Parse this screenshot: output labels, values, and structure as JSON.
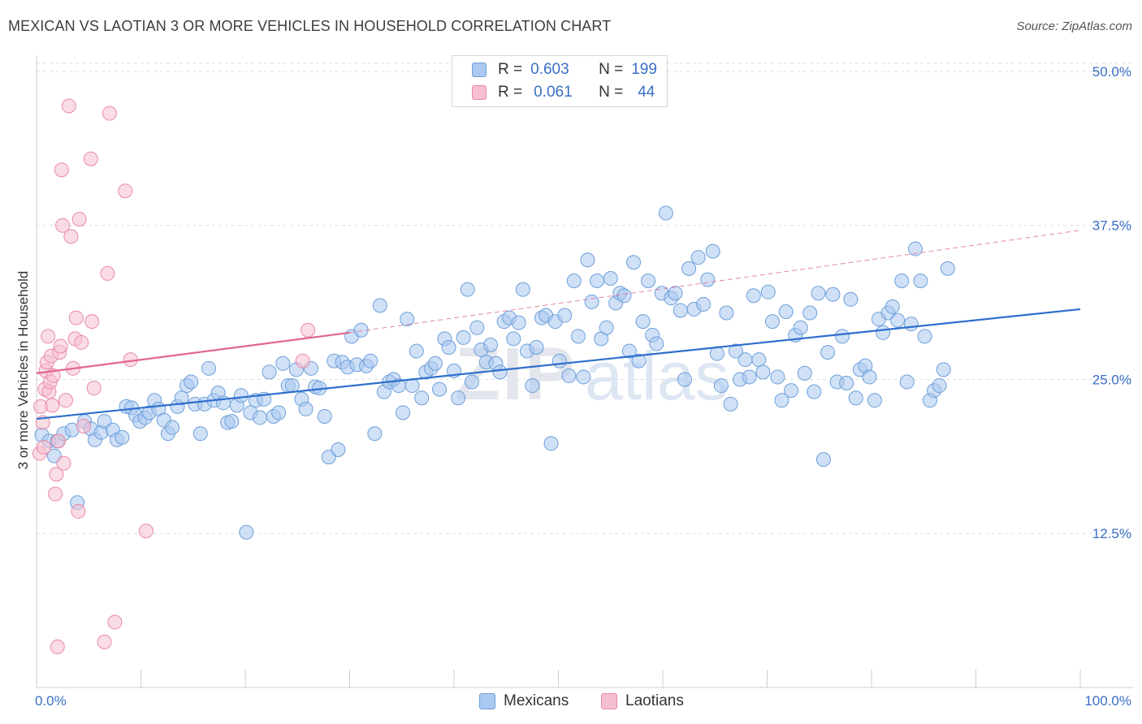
{
  "header": {
    "title": "MEXICAN VS LAOTIAN 3 OR MORE VEHICLES IN HOUSEHOLD CORRELATION CHART",
    "source": "Source: ZipAtlas.com"
  },
  "legend": {
    "rows": [
      {
        "r_label": "R =",
        "r_value": "0.603",
        "n_label": "N =",
        "n_value": "199"
      },
      {
        "r_label": "R =",
        "r_value": "0.061",
        "n_label": "N =",
        "n_value": "44"
      }
    ],
    "bottom": [
      "Mexicans",
      "Laotians"
    ]
  },
  "watermark": {
    "zip": "ZIP",
    "atlas": "atlas"
  },
  "colors": {
    "mexicans_fill": "#aac8f0",
    "mexicans_stroke": "#6e9fd8",
    "mexicans_line": "#2e6fcc",
    "laotians_fill": "#f6bfd0",
    "laotians_stroke": "#e88aa8",
    "laotians_line": "#e06890",
    "tick_label": "#3a6fc4",
    "grid": "#dddddd"
  },
  "chart_data": {
    "type": "scatter",
    "title": "MEXICAN VS LAOTIAN 3 OR MORE VEHICLES IN HOUSEHOLD CORRELATION CHART",
    "xlabel": "",
    "ylabel": "3 or more Vehicles in Household",
    "xlim": [
      0,
      100
    ],
    "ylim": [
      0,
      52.5
    ],
    "x_tick_labels": [
      "0.0%",
      "100.0%"
    ],
    "y_ticks": [
      12.5,
      25.0,
      37.5,
      50.0
    ],
    "y_tick_labels": [
      "12.5%",
      "25.0%",
      "37.5%",
      "50.0%"
    ],
    "grid": "horizontal dashed",
    "legend_position": "top-center",
    "series": [
      {
        "name": "Mexicans",
        "R": 0.603,
        "N": 199,
        "trend": {
          "x": [
            0,
            100
          ],
          "y": [
            21.8,
            30.7
          ]
        },
        "points": [
          [
            0.5,
            20.5
          ],
          [
            1.2,
            20.0
          ],
          [
            1.7,
            18.8
          ],
          [
            2.0,
            20.0
          ],
          [
            2.6,
            20.6
          ],
          [
            3.4,
            20.9
          ],
          [
            3.9,
            15.0
          ],
          [
            4.6,
            21.6
          ],
          [
            5.2,
            21.0
          ],
          [
            5.6,
            20.1
          ],
          [
            6.2,
            20.7
          ],
          [
            6.5,
            21.6
          ],
          [
            7.3,
            20.9
          ],
          [
            7.7,
            20.1
          ],
          [
            8.2,
            20.3
          ],
          [
            8.6,
            22.8
          ],
          [
            9.1,
            22.7
          ],
          [
            9.5,
            22.1
          ],
          [
            9.9,
            21.6
          ],
          [
            10.4,
            21.9
          ],
          [
            10.8,
            22.3
          ],
          [
            11.3,
            23.3
          ],
          [
            11.7,
            22.6
          ],
          [
            12.2,
            21.7
          ],
          [
            12.6,
            20.6
          ],
          [
            13.0,
            21.1
          ],
          [
            13.5,
            22.8
          ],
          [
            13.9,
            23.5
          ],
          [
            14.4,
            24.5
          ],
          [
            14.8,
            24.8
          ],
          [
            15.2,
            23.0
          ],
          [
            15.7,
            20.6
          ],
          [
            16.1,
            23.0
          ],
          [
            16.5,
            25.9
          ],
          [
            17.0,
            23.3
          ],
          [
            17.4,
            23.9
          ],
          [
            17.9,
            23.1
          ],
          [
            18.3,
            21.5
          ],
          [
            18.7,
            21.6
          ],
          [
            19.2,
            22.9
          ],
          [
            19.6,
            23.7
          ],
          [
            20.1,
            12.6
          ],
          [
            20.5,
            22.3
          ],
          [
            21.0,
            23.3
          ],
          [
            21.4,
            21.9
          ],
          [
            21.8,
            23.4
          ],
          [
            22.3,
            25.6
          ],
          [
            22.7,
            22.0
          ],
          [
            23.2,
            22.3
          ],
          [
            23.6,
            26.3
          ],
          [
            24.1,
            24.5
          ],
          [
            24.5,
            24.5
          ],
          [
            24.9,
            25.8
          ],
          [
            25.4,
            23.4
          ],
          [
            25.8,
            22.6
          ],
          [
            26.3,
            25.9
          ],
          [
            26.7,
            24.4
          ],
          [
            27.1,
            24.3
          ],
          [
            27.6,
            22.0
          ],
          [
            28.0,
            18.7
          ],
          [
            28.5,
            26.5
          ],
          [
            28.9,
            19.3
          ],
          [
            29.3,
            26.4
          ],
          [
            29.8,
            26.0
          ],
          [
            30.2,
            28.5
          ],
          [
            30.7,
            26.2
          ],
          [
            31.1,
            29.0
          ],
          [
            31.6,
            26.1
          ],
          [
            32.0,
            26.5
          ],
          [
            32.4,
            20.6
          ],
          [
            32.9,
            31.0
          ],
          [
            33.3,
            24.0
          ],
          [
            33.8,
            24.8
          ],
          [
            34.2,
            25.0
          ],
          [
            34.7,
            24.5
          ],
          [
            35.1,
            22.3
          ],
          [
            35.5,
            29.9
          ],
          [
            36.0,
            24.5
          ],
          [
            36.4,
            27.3
          ],
          [
            36.9,
            23.5
          ],
          [
            37.3,
            25.6
          ],
          [
            37.8,
            25.9
          ],
          [
            38.2,
            26.3
          ],
          [
            38.6,
            24.2
          ],
          [
            39.1,
            28.3
          ],
          [
            39.5,
            27.6
          ],
          [
            40.0,
            25.7
          ],
          [
            40.4,
            23.5
          ],
          [
            40.9,
            28.4
          ],
          [
            41.3,
            32.3
          ],
          [
            41.7,
            24.8
          ],
          [
            42.2,
            29.2
          ],
          [
            42.6,
            27.4
          ],
          [
            43.1,
            26.4
          ],
          [
            43.5,
            27.8
          ],
          [
            44.0,
            26.3
          ],
          [
            44.4,
            25.6
          ],
          [
            44.8,
            29.7
          ],
          [
            45.3,
            30.0
          ],
          [
            45.7,
            28.3
          ],
          [
            46.2,
            29.6
          ],
          [
            46.6,
            32.3
          ],
          [
            47.0,
            27.3
          ],
          [
            47.5,
            24.5
          ],
          [
            47.9,
            27.6
          ],
          [
            48.4,
            30.0
          ],
          [
            48.8,
            30.2
          ],
          [
            49.3,
            19.8
          ],
          [
            49.7,
            29.7
          ],
          [
            50.1,
            26.5
          ],
          [
            50.6,
            30.2
          ],
          [
            51.0,
            25.3
          ],
          [
            51.5,
            33.0
          ],
          [
            51.9,
            28.5
          ],
          [
            52.4,
            25.2
          ],
          [
            52.8,
            34.7
          ],
          [
            53.2,
            31.3
          ],
          [
            53.7,
            33.0
          ],
          [
            54.1,
            28.3
          ],
          [
            54.6,
            29.2
          ],
          [
            55.0,
            33.2
          ],
          [
            55.5,
            31.2
          ],
          [
            55.9,
            32.0
          ],
          [
            56.3,
            31.8
          ],
          [
            56.8,
            27.3
          ],
          [
            57.2,
            34.5
          ],
          [
            57.7,
            26.5
          ],
          [
            58.1,
            29.7
          ],
          [
            58.6,
            33.0
          ],
          [
            59.0,
            28.6
          ],
          [
            59.4,
            27.9
          ],
          [
            59.9,
            32.0
          ],
          [
            60.3,
            38.5
          ],
          [
            60.8,
            31.6
          ],
          [
            61.2,
            32.0
          ],
          [
            61.7,
            30.6
          ],
          [
            62.1,
            25.0
          ],
          [
            62.5,
            34.0
          ],
          [
            63.0,
            30.7
          ],
          [
            63.4,
            34.9
          ],
          [
            63.9,
            31.1
          ],
          [
            64.3,
            33.1
          ],
          [
            64.8,
            35.4
          ],
          [
            65.2,
            27.1
          ],
          [
            65.6,
            24.5
          ],
          [
            66.1,
            30.4
          ],
          [
            66.5,
            23.0
          ],
          [
            67.0,
            27.3
          ],
          [
            67.4,
            25.0
          ],
          [
            67.9,
            26.6
          ],
          [
            68.3,
            25.2
          ],
          [
            68.7,
            31.8
          ],
          [
            69.2,
            26.6
          ],
          [
            69.6,
            25.6
          ],
          [
            70.1,
            32.1
          ],
          [
            70.5,
            29.7
          ],
          [
            71.0,
            25.2
          ],
          [
            71.4,
            23.3
          ],
          [
            71.8,
            30.5
          ],
          [
            72.3,
            24.1
          ],
          [
            72.7,
            28.6
          ],
          [
            73.2,
            29.2
          ],
          [
            73.6,
            25.5
          ],
          [
            74.1,
            30.4
          ],
          [
            74.5,
            24.0
          ],
          [
            74.9,
            32.0
          ],
          [
            75.4,
            18.5
          ],
          [
            75.8,
            27.2
          ],
          [
            76.3,
            31.9
          ],
          [
            76.7,
            24.8
          ],
          [
            77.2,
            28.5
          ],
          [
            77.6,
            24.7
          ],
          [
            78.0,
            31.5
          ],
          [
            78.5,
            23.5
          ],
          [
            78.9,
            25.8
          ],
          [
            79.4,
            26.1
          ],
          [
            79.8,
            25.2
          ],
          [
            80.3,
            23.3
          ],
          [
            80.7,
            29.9
          ],
          [
            81.1,
            28.8
          ],
          [
            81.6,
            30.4
          ],
          [
            82.0,
            30.9
          ],
          [
            82.5,
            29.8
          ],
          [
            82.9,
            33.0
          ],
          [
            83.4,
            24.8
          ],
          [
            83.8,
            29.5
          ],
          [
            84.2,
            35.6
          ],
          [
            84.7,
            33.0
          ],
          [
            85.1,
            28.5
          ],
          [
            85.6,
            23.3
          ],
          [
            86.0,
            24.1
          ],
          [
            86.5,
            24.5
          ],
          [
            86.9,
            25.8
          ],
          [
            87.3,
            34.0
          ]
        ]
      },
      {
        "name": "Laotians",
        "R": 0.061,
        "N": 44,
        "trend": {
          "x": [
            0,
            30
          ],
          "y": [
            25.5,
            28.8
          ]
        },
        "trend_extension": {
          "x": [
            30,
            100
          ],
          "y": [
            28.8,
            37.1
          ]
        },
        "points": [
          [
            0.3,
            19.0
          ],
          [
            0.4,
            22.8
          ],
          [
            0.6,
            21.5
          ],
          [
            0.7,
            19.5
          ],
          [
            0.8,
            24.2
          ],
          [
            0.9,
            25.7
          ],
          [
            1.0,
            26.4
          ],
          [
            1.1,
            28.5
          ],
          [
            1.2,
            24.0
          ],
          [
            1.3,
            24.8
          ],
          [
            1.4,
            26.9
          ],
          [
            1.5,
            22.9
          ],
          [
            1.6,
            25.3
          ],
          [
            1.8,
            15.7
          ],
          [
            1.9,
            17.3
          ],
          [
            2.0,
            3.3
          ],
          [
            2.1,
            20.0
          ],
          [
            2.2,
            27.2
          ],
          [
            2.3,
            27.7
          ],
          [
            2.4,
            42.0
          ],
          [
            2.5,
            37.5
          ],
          [
            2.6,
            18.2
          ],
          [
            2.8,
            23.3
          ],
          [
            3.1,
            47.2
          ],
          [
            3.3,
            36.6
          ],
          [
            3.5,
            25.9
          ],
          [
            3.7,
            28.3
          ],
          [
            3.8,
            30.0
          ],
          [
            4.0,
            14.3
          ],
          [
            4.1,
            38.0
          ],
          [
            4.3,
            28.0
          ],
          [
            4.5,
            21.2
          ],
          [
            5.2,
            42.9
          ],
          [
            5.3,
            29.7
          ],
          [
            5.5,
            24.3
          ],
          [
            6.5,
            3.7
          ],
          [
            6.8,
            33.6
          ],
          [
            7.0,
            46.6
          ],
          [
            7.5,
            5.3
          ],
          [
            8.5,
            40.3
          ],
          [
            9.0,
            26.6
          ],
          [
            10.5,
            12.7
          ],
          [
            25.5,
            26.5
          ],
          [
            26.0,
            29.0
          ]
        ]
      }
    ]
  }
}
